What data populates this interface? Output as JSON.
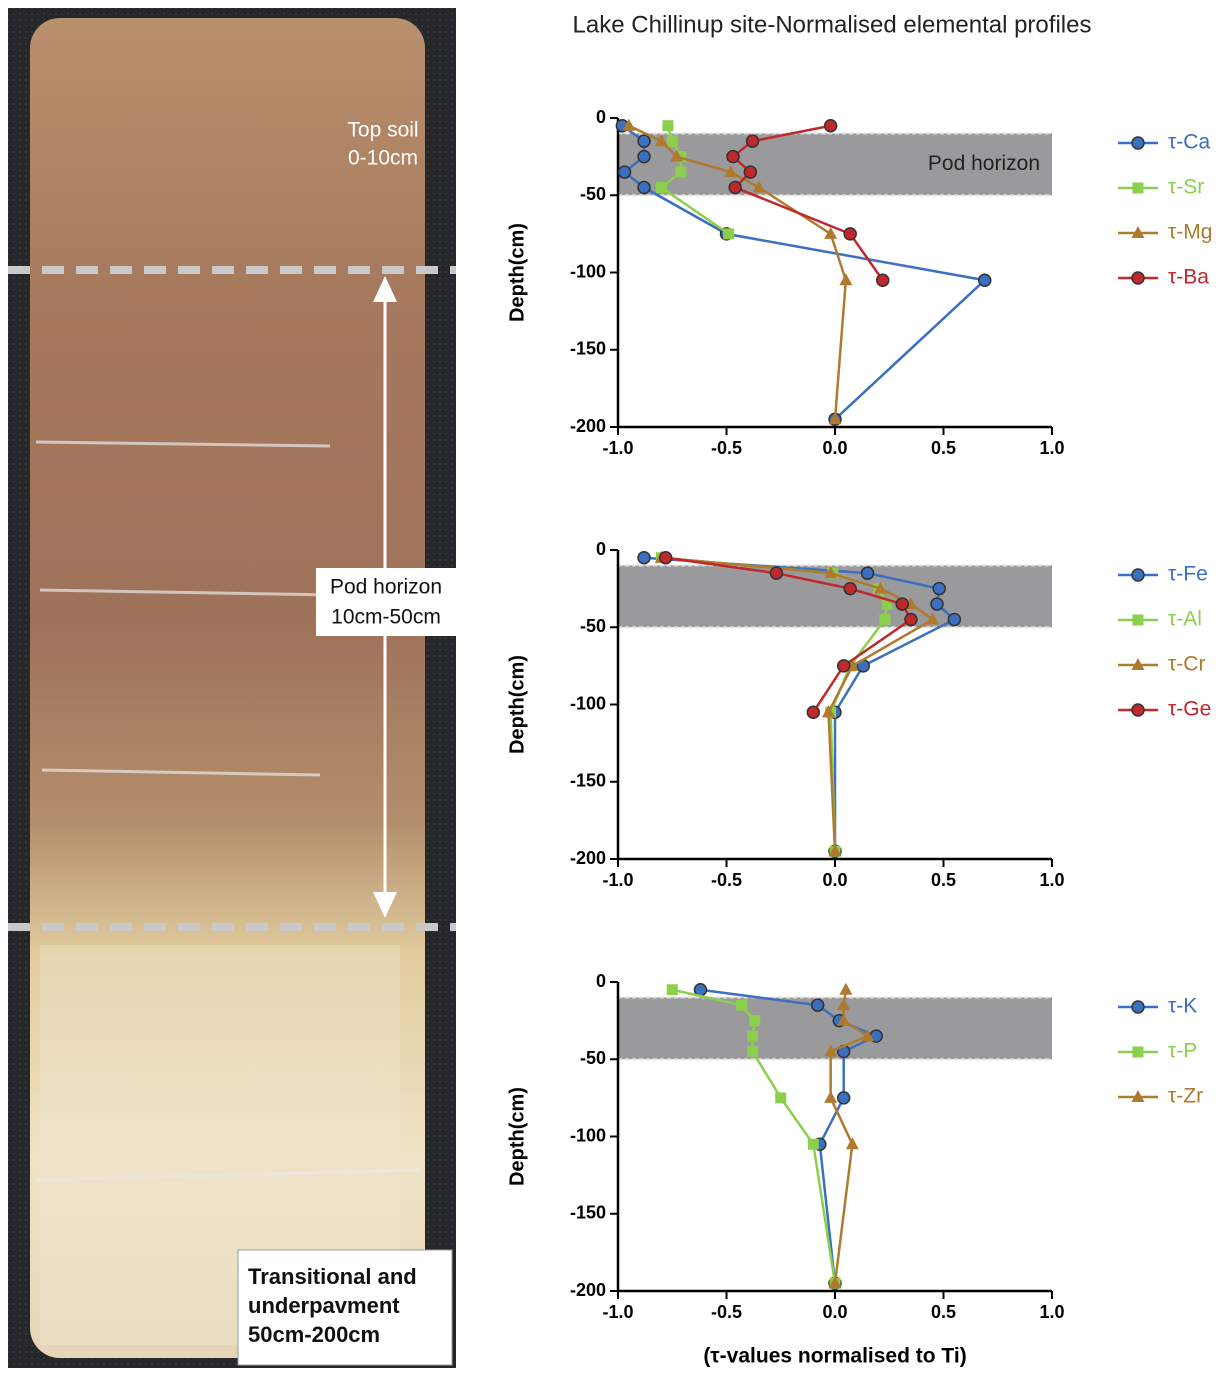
{
  "title": "Lake Chillinup site-Normalised elemental profiles",
  "photo": {
    "top_soil": [
      "Top soil",
      "0-10cm"
    ],
    "pod": [
      "Pod horizon",
      "10cm-50cm"
    ],
    "transitional": [
      "Transitional and",
      "underpavment",
      "50cm-200cm"
    ]
  },
  "chart_data": [
    {
      "type": "line",
      "ylabel": "Depth(cm)",
      "band": [
        -10,
        -50
      ],
      "band_label": "Pod horizon",
      "xlim": [
        -1,
        1
      ],
      "xticks": [
        {
          "value": -1,
          "label": "-1.0"
        },
        -0.5,
        {
          "value": 0,
          "label": "0.0"
        },
        0.5,
        {
          "value": 1,
          "label": "1.0"
        }
      ],
      "ylim": [
        -200,
        0
      ],
      "yticks": [
        0,
        -50,
        -100,
        -150,
        -200
      ],
      "y": [
        -5,
        -15,
        -25,
        -35,
        -45,
        -75,
        -105,
        -195
      ],
      "series": [
        {
          "name": "τ-Ca",
          "color": "#3b6fc0",
          "marker": "circle",
          "x": [
            -0.98,
            -0.88,
            -0.88,
            -0.97,
            -0.88,
            -0.5,
            0.69,
            0
          ]
        },
        {
          "name": "τ-Sr",
          "color": "#8ccf4d",
          "marker": "square",
          "x": [
            -0.77,
            -0.75,
            -0.71,
            -0.71,
            -0.8,
            -0.49,
            null,
            null
          ]
        },
        {
          "name": "τ-Mg",
          "color": "#b07a2e",
          "marker": "triangle",
          "x": [
            -0.95,
            -0.8,
            -0.73,
            -0.48,
            -0.35,
            -0.02,
            0.05,
            0
          ]
        },
        {
          "name": "τ-Ba",
          "color": "#c0282d",
          "marker": "circle",
          "x": [
            -0.02,
            -0.38,
            -0.47,
            -0.39,
            -0.46,
            0.07,
            0.22,
            null
          ]
        }
      ]
    },
    {
      "type": "line",
      "ylabel": "Depth(cm)",
      "band": [
        -10,
        -50
      ],
      "xlim": [
        -1,
        1
      ],
      "xticks": [
        {
          "value": -1,
          "label": "-1.0"
        },
        -0.5,
        {
          "value": 0,
          "label": "0.0"
        },
        0.5,
        {
          "value": 1,
          "label": "1.0"
        }
      ],
      "ylim": [
        -200,
        0
      ],
      "yticks": [
        0,
        -50,
        -100,
        -150,
        -200
      ],
      "y": [
        -5,
        -15,
        -25,
        -35,
        -45,
        -75,
        -105,
        -195
      ],
      "series": [
        {
          "name": "τ-Fe",
          "color": "#3b6fc0",
          "marker": "circle",
          "x": [
            -0.88,
            0.15,
            0.48,
            0.47,
            0.55,
            0.13,
            0,
            0
          ]
        },
        {
          "name": "τ-Al",
          "color": "#8ccf4d",
          "marker": "square",
          "x": [
            -0.8,
            -0.01,
            0.2,
            0.24,
            0.23,
            0.07,
            -0.02,
            0
          ]
        },
        {
          "name": "τ-Cr",
          "color": "#b07a2e",
          "marker": "triangle",
          "x": [
            -0.8,
            -0.02,
            0.21,
            0.35,
            0.45,
            0.08,
            -0.03,
            0
          ]
        },
        {
          "name": "τ-Ge",
          "color": "#c0282d",
          "marker": "circle",
          "x": [
            -0.78,
            -0.27,
            0.07,
            0.31,
            0.35,
            0.04,
            -0.1,
            null
          ]
        }
      ]
    },
    {
      "type": "line",
      "ylabel": "Depth(cm)",
      "xlabel": "(τ-values normalised to Ti)",
      "band": [
        -10,
        -50
      ],
      "xlim": [
        -1,
        1
      ],
      "xticks": [
        {
          "value": -1,
          "label": "-1.0"
        },
        -0.5,
        {
          "value": 0,
          "label": "0.0"
        },
        0.5,
        {
          "value": 1,
          "label": "1.0"
        }
      ],
      "ylim": [
        -200,
        0
      ],
      "yticks": [
        0,
        -50,
        -100,
        -150,
        -200
      ],
      "y": [
        -5,
        -15,
        -25,
        -35,
        -45,
        -75,
        -105,
        -195
      ],
      "series": [
        {
          "name": "τ-K",
          "color": "#3b6fc0",
          "marker": "circle",
          "x": [
            -0.62,
            -0.08,
            0.02,
            0.19,
            0.04,
            0.04,
            -0.07,
            0
          ]
        },
        {
          "name": "τ-P",
          "color": "#8ccf4d",
          "marker": "square",
          "x": [
            -0.75,
            -0.43,
            -0.37,
            -0.38,
            -0.38,
            -0.25,
            -0.1,
            0
          ]
        },
        {
          "name": "τ-Zr",
          "color": "#b07a2e",
          "marker": "triangle",
          "x": [
            0.05,
            0.04,
            0.04,
            0.15,
            -0.02,
            -0.02,
            0.08,
            0
          ]
        }
      ]
    }
  ]
}
